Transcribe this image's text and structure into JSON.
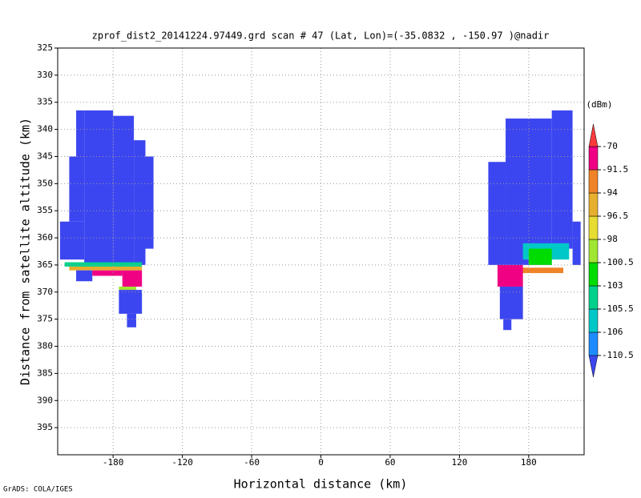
{
  "chart_data": {
    "type": "heatmap",
    "title": "zprof_dist2_20141224.97449.grd  scan # 47  (Lat, Lon)=(-35.0832 , -150.97 )@nadir",
    "xlabel": "Horizontal distance (km)",
    "ylabel": "Distance from satellite altitude (km)",
    "footer": "GrADS: COLA/IGES",
    "xlim": [
      -228,
      228
    ],
    "xticks": [
      -180,
      -120,
      -60,
      0,
      60,
      120,
      180
    ],
    "ylim": [
      400,
      325
    ],
    "yticks": [
      325,
      330,
      335,
      340,
      345,
      350,
      355,
      360,
      365,
      370,
      375,
      380,
      385,
      390,
      395
    ],
    "grid": true,
    "colorbar_label": "(dBm)",
    "levels": [
      -110.5,
      -106,
      -105.5,
      -103,
      -100.5,
      -98,
      -96.5,
      -94,
      -91.5,
      -70
    ],
    "colors": [
      "#3c46f0",
      "#1e8cff",
      "#00c8c8",
      "#00d28c",
      "#00dc00",
      "#a0e632",
      "#e6dc32",
      "#e6af2d",
      "#f08228",
      "#f00082",
      "#fa3c3c"
    ],
    "cells": [
      {
        "x0": -226,
        "x1": -205,
        "y0": 357,
        "y1": 364,
        "value": -112
      },
      {
        "x0": -218,
        "x1": -205,
        "y0": 345,
        "y1": 357,
        "value": -112
      },
      {
        "x0": -212,
        "x1": -205,
        "y0": 336.5,
        "y1": 345,
        "value": -112
      },
      {
        "x0": -205,
        "x1": -180,
        "y0": 336.5,
        "y1": 365,
        "value": -112
      },
      {
        "x0": -180,
        "x1": -162,
        "y0": 337.5,
        "y1": 365,
        "value": -112
      },
      {
        "x0": -162,
        "x1": -152,
        "y0": 342,
        "y1": 365,
        "value": -112
      },
      {
        "x0": -152,
        "x1": -145,
        "y0": 345,
        "y1": 362,
        "value": -112
      },
      {
        "x0": -222,
        "x1": -155,
        "y0": 364.5,
        "y1": 365.3,
        "value": -104
      },
      {
        "x0": -218,
        "x1": -155,
        "y0": 365.3,
        "y1": 366,
        "value": -96
      },
      {
        "x0": -212,
        "x1": -198,
        "y0": 366,
        "y1": 368,
        "value": -112
      },
      {
        "x0": -198,
        "x1": -172,
        "y0": 366,
        "y1": 367,
        "value": -85
      },
      {
        "x0": -172,
        "x1": -155,
        "y0": 366,
        "y1": 369,
        "value": -85
      },
      {
        "x0": -175,
        "x1": -160,
        "y0": 369,
        "y1": 369.6,
        "value": -99
      },
      {
        "x0": -175,
        "x1": -155,
        "y0": 369.6,
        "y1": 374,
        "value": -112
      },
      {
        "x0": -168,
        "x1": -160,
        "y0": 374,
        "y1": 376.5,
        "value": -112
      },
      {
        "x0": 145,
        "x1": 160,
        "y0": 346,
        "y1": 365,
        "value": -112
      },
      {
        "x0": 160,
        "x1": 200,
        "y0": 338,
        "y1": 365,
        "value": -112
      },
      {
        "x0": 200,
        "x1": 218,
        "y0": 336.5,
        "y1": 362,
        "value": -112
      },
      {
        "x0": 218,
        "x1": 225,
        "y0": 357,
        "y1": 365,
        "value": -112
      },
      {
        "x0": 175,
        "x1": 215,
        "y0": 361,
        "y1": 364,
        "value": -105.8
      },
      {
        "x0": 180,
        "x1": 200,
        "y0": 362,
        "y1": 365,
        "value": -101
      },
      {
        "x0": 158,
        "x1": 210,
        "y0": 365.5,
        "y1": 366.5,
        "value": -93
      },
      {
        "x0": 153,
        "x1": 175,
        "y0": 365,
        "y1": 369,
        "value": -85
      },
      {
        "x0": 155,
        "x1": 175,
        "y0": 369,
        "y1": 375,
        "value": -112
      },
      {
        "x0": 158,
        "x1": 165,
        "y0": 375,
        "y1": 377,
        "value": -112
      }
    ]
  }
}
